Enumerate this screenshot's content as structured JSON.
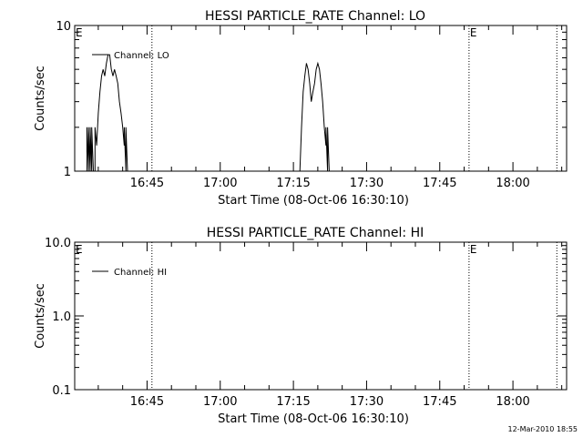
{
  "timestamp": "12-Mar-2010 18:55",
  "colors": {
    "foreground": "#000000",
    "background": "#ffffff"
  },
  "chart_data": [
    {
      "type": "line",
      "title": "HESSI PARTICLE_RATE Channel: LO",
      "xlabel": "Start Time (08-Oct-06 16:30:10)",
      "ylabel": "Counts/sec",
      "y_scale": "log",
      "ylim": [
        1,
        10
      ],
      "y_ticks": [
        1,
        10
      ],
      "y_tick_labels": [
        "1",
        "10"
      ],
      "x_range": [
        "16:30:10",
        "18:11:00"
      ],
      "x_ticks": [
        "16:45",
        "17:00",
        "17:15",
        "17:30",
        "17:45",
        "18:00"
      ],
      "legend": "Channel: LO",
      "legend_position": "top-left",
      "eclipse_markers": [
        "16:30:10",
        "17:51:00"
      ],
      "eclipse_marker_label": "E",
      "vertical_dotted_lines": [
        "16:46:00",
        "17:51:00",
        "18:09:00"
      ],
      "series": [
        {
          "name": "Channel: LO",
          "points": [
            [
              "16:32:40",
              1
            ],
            [
              "16:32:40",
              2
            ],
            [
              "16:33:00",
              1
            ],
            [
              "16:33:00",
              2
            ],
            [
              "16:33:20",
              1
            ],
            [
              "16:33:20",
              2
            ],
            [
              "16:33:40",
              1
            ],
            [
              "16:33:40",
              2
            ],
            [
              "16:34:00",
              1
            ],
            [
              "16:34:20",
              1
            ],
            [
              "16:34:20",
              2
            ],
            [
              "16:34:40",
              1.5
            ],
            [
              "16:35:00",
              2.5
            ],
            [
              "16:35:20",
              3.5
            ],
            [
              "16:35:40",
              4.5
            ],
            [
              "16:36:00",
              5
            ],
            [
              "16:36:20",
              4.5
            ],
            [
              "16:36:40",
              5.5
            ],
            [
              "16:37:00",
              6.3
            ],
            [
              "16:37:20",
              6.3
            ],
            [
              "16:37:40",
              5
            ],
            [
              "16:38:00",
              4.5
            ],
            [
              "16:38:20",
              5
            ],
            [
              "16:38:40",
              4.5
            ],
            [
              "16:39:00",
              4
            ],
            [
              "16:39:20",
              3
            ],
            [
              "16:39:40",
              2.5
            ],
            [
              "16:40:00",
              2
            ],
            [
              "16:40:20",
              1.5
            ],
            [
              "16:40:20",
              2
            ],
            [
              "16:40:40",
              1
            ],
            [
              "16:40:40",
              2
            ],
            [
              "16:41:00",
              1
            ],
            [
              "17:16:20",
              1
            ],
            [
              "17:16:40",
              2
            ],
            [
              "17:17:00",
              3.5
            ],
            [
              "17:17:20",
              4.5
            ],
            [
              "17:17:40",
              5.5
            ],
            [
              "17:18:00",
              5
            ],
            [
              "17:18:20",
              4
            ],
            [
              "17:18:40",
              3
            ],
            [
              "17:19:00",
              3.5
            ],
            [
              "17:19:20",
              4
            ],
            [
              "17:19:40",
              5
            ],
            [
              "17:20:00",
              5.5
            ],
            [
              "17:20:20",
              5
            ],
            [
              "17:20:40",
              4
            ],
            [
              "17:21:00",
              3
            ],
            [
              "17:21:20",
              2
            ],
            [
              "17:21:40",
              1.5
            ],
            [
              "17:21:40",
              2
            ],
            [
              "17:22:00",
              1
            ],
            [
              "17:22:00",
              2
            ],
            [
              "17:22:20",
              1
            ]
          ]
        }
      ]
    },
    {
      "type": "line",
      "title": "HESSI PARTICLE_RATE Channel: HI",
      "xlabel": "Start Time (08-Oct-06 16:30:10)",
      "ylabel": "Counts/sec",
      "y_scale": "log",
      "ylim": [
        0.1,
        10
      ],
      "y_ticks": [
        0.1,
        1,
        10
      ],
      "y_tick_labels": [
        "0.1",
        "1.0",
        "10.0"
      ],
      "x_range": [
        "16:30:10",
        "18:11:00"
      ],
      "x_ticks": [
        "16:45",
        "17:00",
        "17:15",
        "17:30",
        "17:45",
        "18:00"
      ],
      "legend": "Channel: HI",
      "legend_position": "top-left",
      "eclipse_markers": [
        "16:30:10",
        "17:51:00"
      ],
      "eclipse_marker_label": "E",
      "vertical_dotted_lines": [
        "16:46:00",
        "17:51:00",
        "18:09:00"
      ],
      "series": [
        {
          "name": "Channel: HI",
          "points": []
        }
      ]
    }
  ]
}
